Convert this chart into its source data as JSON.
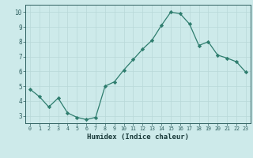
{
  "x": [
    0,
    1,
    2,
    3,
    4,
    5,
    6,
    7,
    8,
    9,
    10,
    11,
    12,
    13,
    14,
    15,
    16,
    17,
    18,
    19,
    20,
    21,
    22,
    23
  ],
  "y": [
    4.8,
    4.3,
    3.6,
    4.2,
    3.2,
    2.9,
    2.75,
    2.9,
    5.0,
    5.3,
    6.1,
    6.8,
    7.5,
    8.1,
    9.1,
    10.0,
    9.9,
    9.2,
    7.75,
    8.0,
    7.1,
    6.9,
    6.65,
    5.95
  ],
  "line_color": "#2e7d6e",
  "marker": "D",
  "marker_size": 2.2,
  "bg_color": "#cdeaea",
  "grid_color": "#b8d8d8",
  "tick_label_color": "#2e5f5f",
  "xlabel": "Humidex (Indice chaleur)",
  "xlabel_color": "#1a3a3a",
  "ylim": [
    2.5,
    10.5
  ],
  "xlim": [
    -0.5,
    23.5
  ],
  "yticks": [
    3,
    4,
    5,
    6,
    7,
    8,
    9,
    10
  ],
  "xticks": [
    0,
    1,
    2,
    3,
    4,
    5,
    6,
    7,
    8,
    9,
    10,
    11,
    12,
    13,
    14,
    15,
    16,
    17,
    18,
    19,
    20,
    21,
    22,
    23
  ]
}
